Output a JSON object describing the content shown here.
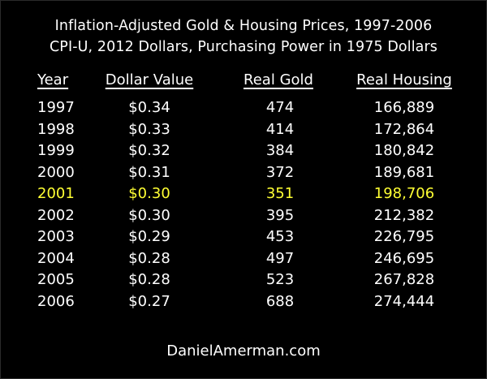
{
  "title_line1": "Inflation-Adjusted Gold & Housing Prices, 1997-2006",
  "title_line2": "CPI-U, 2012 Dollars, Purchasing Power in 1975 Dollars",
  "footer": "DanielAmerman.com",
  "highlight_color": "#ffff33",
  "chart_data": {
    "type": "table",
    "title": "Inflation-Adjusted Gold & Housing Prices, 1997-2006",
    "subtitle": "CPI-U, 2012 Dollars, Purchasing Power in 1975 Dollars",
    "columns": [
      "Year",
      "Dollar Value",
      "Real Gold",
      "Real Housing"
    ],
    "highlighted_row": "2001",
    "rows": [
      [
        "1997",
        "$0.34",
        "474",
        "166,889"
      ],
      [
        "1998",
        "$0.33",
        "414",
        "172,864"
      ],
      [
        "1999",
        "$0.32",
        "384",
        "180,842"
      ],
      [
        "2000",
        "$0.31",
        "372",
        "189,681"
      ],
      [
        "2001",
        "$0.30",
        "351",
        "198,706"
      ],
      [
        "2002",
        "$0.30",
        "395",
        "212,382"
      ],
      [
        "2003",
        "$0.29",
        "453",
        "226,795"
      ],
      [
        "2004",
        "$0.28",
        "497",
        "246,695"
      ],
      [
        "2005",
        "$0.28",
        "523",
        "267,828"
      ],
      [
        "2006",
        "$0.27",
        "688",
        "274,444"
      ]
    ]
  }
}
